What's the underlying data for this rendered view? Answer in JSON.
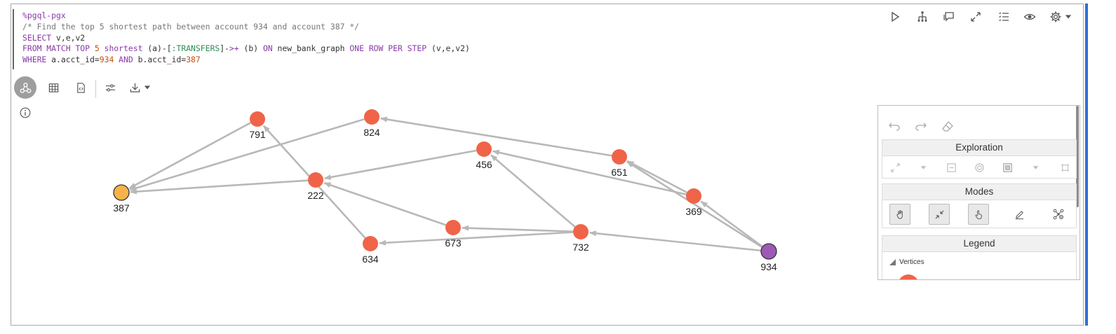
{
  "code": {
    "lines": [
      [
        {
          "t": "%pgql-pgx",
          "c": "kw"
        }
      ],
      [
        {
          "t": "/* Find the top 5 shortest path between account 934 and account 387 */",
          "c": "cm"
        }
      ],
      [
        {
          "t": "SELECT",
          "c": "kw"
        },
        {
          "t": " v,e,v2",
          "c": ""
        }
      ],
      [
        {
          "t": "FROM MATCH TOP",
          "c": "kw"
        },
        {
          "t": " ",
          "c": ""
        },
        {
          "t": "5",
          "c": "num"
        },
        {
          "t": " ",
          "c": ""
        },
        {
          "t": "shortest",
          "c": "kw"
        },
        {
          "t": " (a)-[",
          "c": ""
        },
        {
          "t": ":TRANSFERS",
          "c": "lbl"
        },
        {
          "t": "]-",
          "c": ""
        },
        {
          "t": ">+",
          "c": "kw"
        },
        {
          "t": " (b) ",
          "c": ""
        },
        {
          "t": "ON",
          "c": "kw"
        },
        {
          "t": " new_bank_graph ",
          "c": ""
        },
        {
          "t": "ONE ROW PER STEP",
          "c": "kw"
        },
        {
          "t": " (v,e,v2)",
          "c": ""
        }
      ],
      [
        {
          "t": "WHERE",
          "c": "kw"
        },
        {
          "t": " a.acct_id=",
          "c": ""
        },
        {
          "t": "934",
          "c": "num"
        },
        {
          "t": " ",
          "c": ""
        },
        {
          "t": "AND",
          "c": "kw"
        },
        {
          "t": " b.acct_id=",
          "c": ""
        },
        {
          "t": "387",
          "c": "num"
        }
      ]
    ]
  },
  "toolbar": {
    "icons": [
      "run-icon",
      "hierarchy-icon",
      "comment-icon",
      "expand-icon",
      "list-icon",
      "eye-icon",
      "gear-icon",
      "chevron-down-icon"
    ]
  },
  "viz_toolbar": {
    "icons": [
      "graph-view-icon",
      "table-view-icon",
      "code-view-icon",
      "settings-sliders-icon",
      "download-icon",
      "chevron-down-icon"
    ]
  },
  "graph": {
    "nodes": [
      {
        "id": "791",
        "label": "791",
        "color": "#ef6449"
      },
      {
        "id": "824",
        "label": "824",
        "color": "#ef6449"
      },
      {
        "id": "456",
        "label": "456",
        "color": "#ef6449"
      },
      {
        "id": "651",
        "label": "651",
        "color": "#ef6449"
      },
      {
        "id": "387",
        "label": "387",
        "color": "#f7b34a",
        "outlined": true
      },
      {
        "id": "222",
        "label": "222",
        "color": "#ef6449"
      },
      {
        "id": "369",
        "label": "369",
        "color": "#ef6449"
      },
      {
        "id": "673",
        "label": "673",
        "color": "#ef6449"
      },
      {
        "id": "732",
        "label": "732",
        "color": "#ef6449"
      },
      {
        "id": "634",
        "label": "634",
        "color": "#ef6449"
      },
      {
        "id": "934",
        "label": "934",
        "color": "#9d59b8",
        "outlined": true
      }
    ],
    "edges": [
      [
        "934",
        "732"
      ],
      [
        "934",
        "369"
      ],
      [
        "369",
        "651"
      ],
      [
        "934",
        "651"
      ],
      [
        "651",
        "824"
      ],
      [
        "369",
        "456"
      ],
      [
        "732",
        "456"
      ],
      [
        "732",
        "673"
      ],
      [
        "732",
        "634"
      ],
      [
        "456",
        "222"
      ],
      [
        "673",
        "222"
      ],
      [
        "634",
        "791"
      ],
      [
        "222",
        "387"
      ],
      [
        "824",
        "387"
      ],
      [
        "791",
        "387"
      ]
    ]
  },
  "panel": {
    "undo_icons": [
      "undo-icon",
      "redo-icon",
      "eraser-icon"
    ],
    "exploration": {
      "title": "Exploration"
    },
    "modes": {
      "title": "Modes"
    },
    "legend": {
      "title": "Legend",
      "vertices_label": "Vertices"
    }
  }
}
